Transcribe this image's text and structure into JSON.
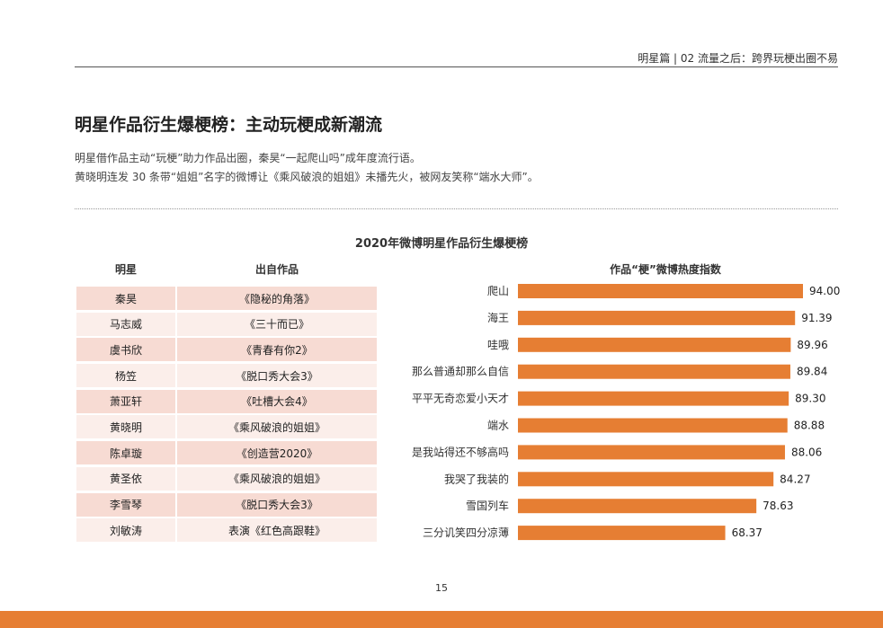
{
  "header": {
    "text": "明星篇 | 02  流量之后：跨界玩梗出圈不易"
  },
  "page_title": "明星作品衍生爆梗榜：主动玩梗成新潮流",
  "intro": {
    "line1": "明星借作品主动“玩梗”助力作品出圈，秦昊“一起爬山吗”成年度流行语。",
    "line2": "黄晓明连发 30 条带“姐姐”名字的微博让《乘风破浪的姐姐》未播先火，被网友笑称“端水大师”。"
  },
  "figure_title": "2020年微博明星作品衍生爆梗榜",
  "table": {
    "headers": [
      "明星",
      "出自作品"
    ],
    "rows": [
      [
        "秦昊",
        "《隐秘的角落》"
      ],
      [
        "马志威",
        "《三十而已》"
      ],
      [
        "虞书欣",
        "《青春有你2》"
      ],
      [
        "杨笠",
        "《脱口秀大会3》"
      ],
      [
        "萧亚轩",
        "《吐槽大会4》"
      ],
      [
        "黄晓明",
        "《乘风破浪的姐姐》"
      ],
      [
        "陈卓璇",
        "《创造营2020》"
      ],
      [
        "黄圣依",
        "《乘风破浪的姐姐》"
      ],
      [
        "李雪琴",
        "《脱口秀大会3》"
      ],
      [
        "刘敏涛",
        "表演《红色高跟鞋》"
      ]
    ]
  },
  "chart_data": {
    "type": "bar",
    "orientation": "horizontal",
    "title": "作品“梗”微博热度指数",
    "categories": [
      "爬山",
      "海王",
      "哇哦",
      "那么普通却那么自信",
      "平平无奇恋爱小天才",
      "端水",
      "是我站得还不够高吗",
      "我哭了我装的",
      "雪国列车",
      "三分讥笑四分凉薄"
    ],
    "values": [
      94.0,
      91.39,
      89.96,
      89.84,
      89.3,
      88.88,
      88.06,
      84.27,
      78.63,
      68.37
    ],
    "value_labels": [
      "94.00",
      "91.39",
      "89.96",
      "89.84",
      "89.30",
      "88.88",
      "88.06",
      "84.27",
      "78.63",
      "68.37"
    ],
    "xlim": [
      0,
      94
    ],
    "grid": false,
    "bar_color": "#e67e33"
  },
  "page_number": "15",
  "colors": {
    "accent": "#e67e33",
    "row_odd": "#f7dbd3",
    "row_even": "#fbeeea"
  }
}
